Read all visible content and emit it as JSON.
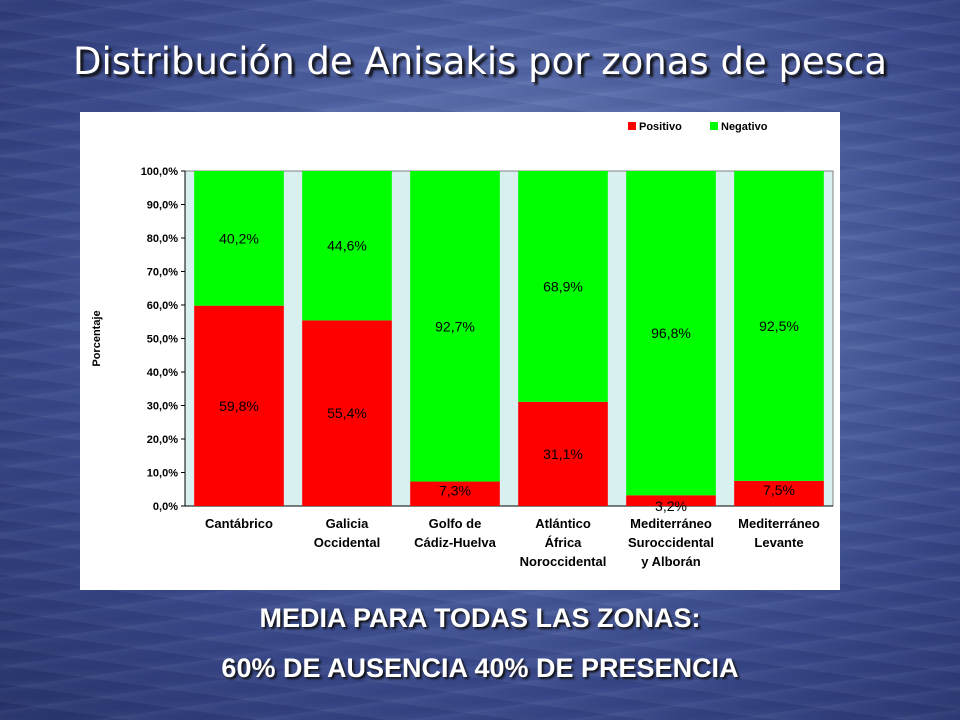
{
  "title": "Distribución de Anisakis por zonas de pesca",
  "footer": {
    "line1": "MEDIA PARA TODAS LAS ZONAS:",
    "line2": "60% DE AUSENCIA   40% DE PRESENCIA"
  },
  "chart_data": {
    "type": "bar",
    "stacked": true,
    "categories": [
      [
        "Cantábrico"
      ],
      [
        "Galicia",
        "Occidental"
      ],
      [
        "Golfo de",
        "Cádiz-Huelva"
      ],
      [
        "Atlántico",
        "África",
        "Noroccidental"
      ],
      [
        "Mediterráneo",
        "Suroccidental",
        "y Alborán"
      ],
      [
        "Mediterráneo",
        "Levante"
      ]
    ],
    "series": [
      {
        "name": "Positivo",
        "color": "#ff0000",
        "values": [
          59.8,
          55.4,
          7.3,
          31.1,
          3.2,
          7.5
        ],
        "labels": [
          "59,8%",
          "55,4%",
          "7,3%",
          "31,1%",
          "3,2%",
          "7,5%"
        ]
      },
      {
        "name": "Negativo",
        "color": "#00ff00",
        "values": [
          40.2,
          44.6,
          92.7,
          68.9,
          96.8,
          92.5
        ],
        "labels": [
          "40,2%",
          "44,6%",
          "92,7%",
          "68,9%",
          "96,8%",
          "92,5%"
        ]
      }
    ],
    "ylabel": "Porcentaje",
    "ylim": [
      0,
      100
    ],
    "yticks": [
      "0,0%",
      "10,0%",
      "20,0%",
      "30,0%",
      "40,0%",
      "50,0%",
      "60,0%",
      "70,0%",
      "80,0%",
      "90,0%",
      "100,0%"
    ],
    "plot_background": "#d9f0f0",
    "legend_position": "top-right",
    "grid": false
  }
}
